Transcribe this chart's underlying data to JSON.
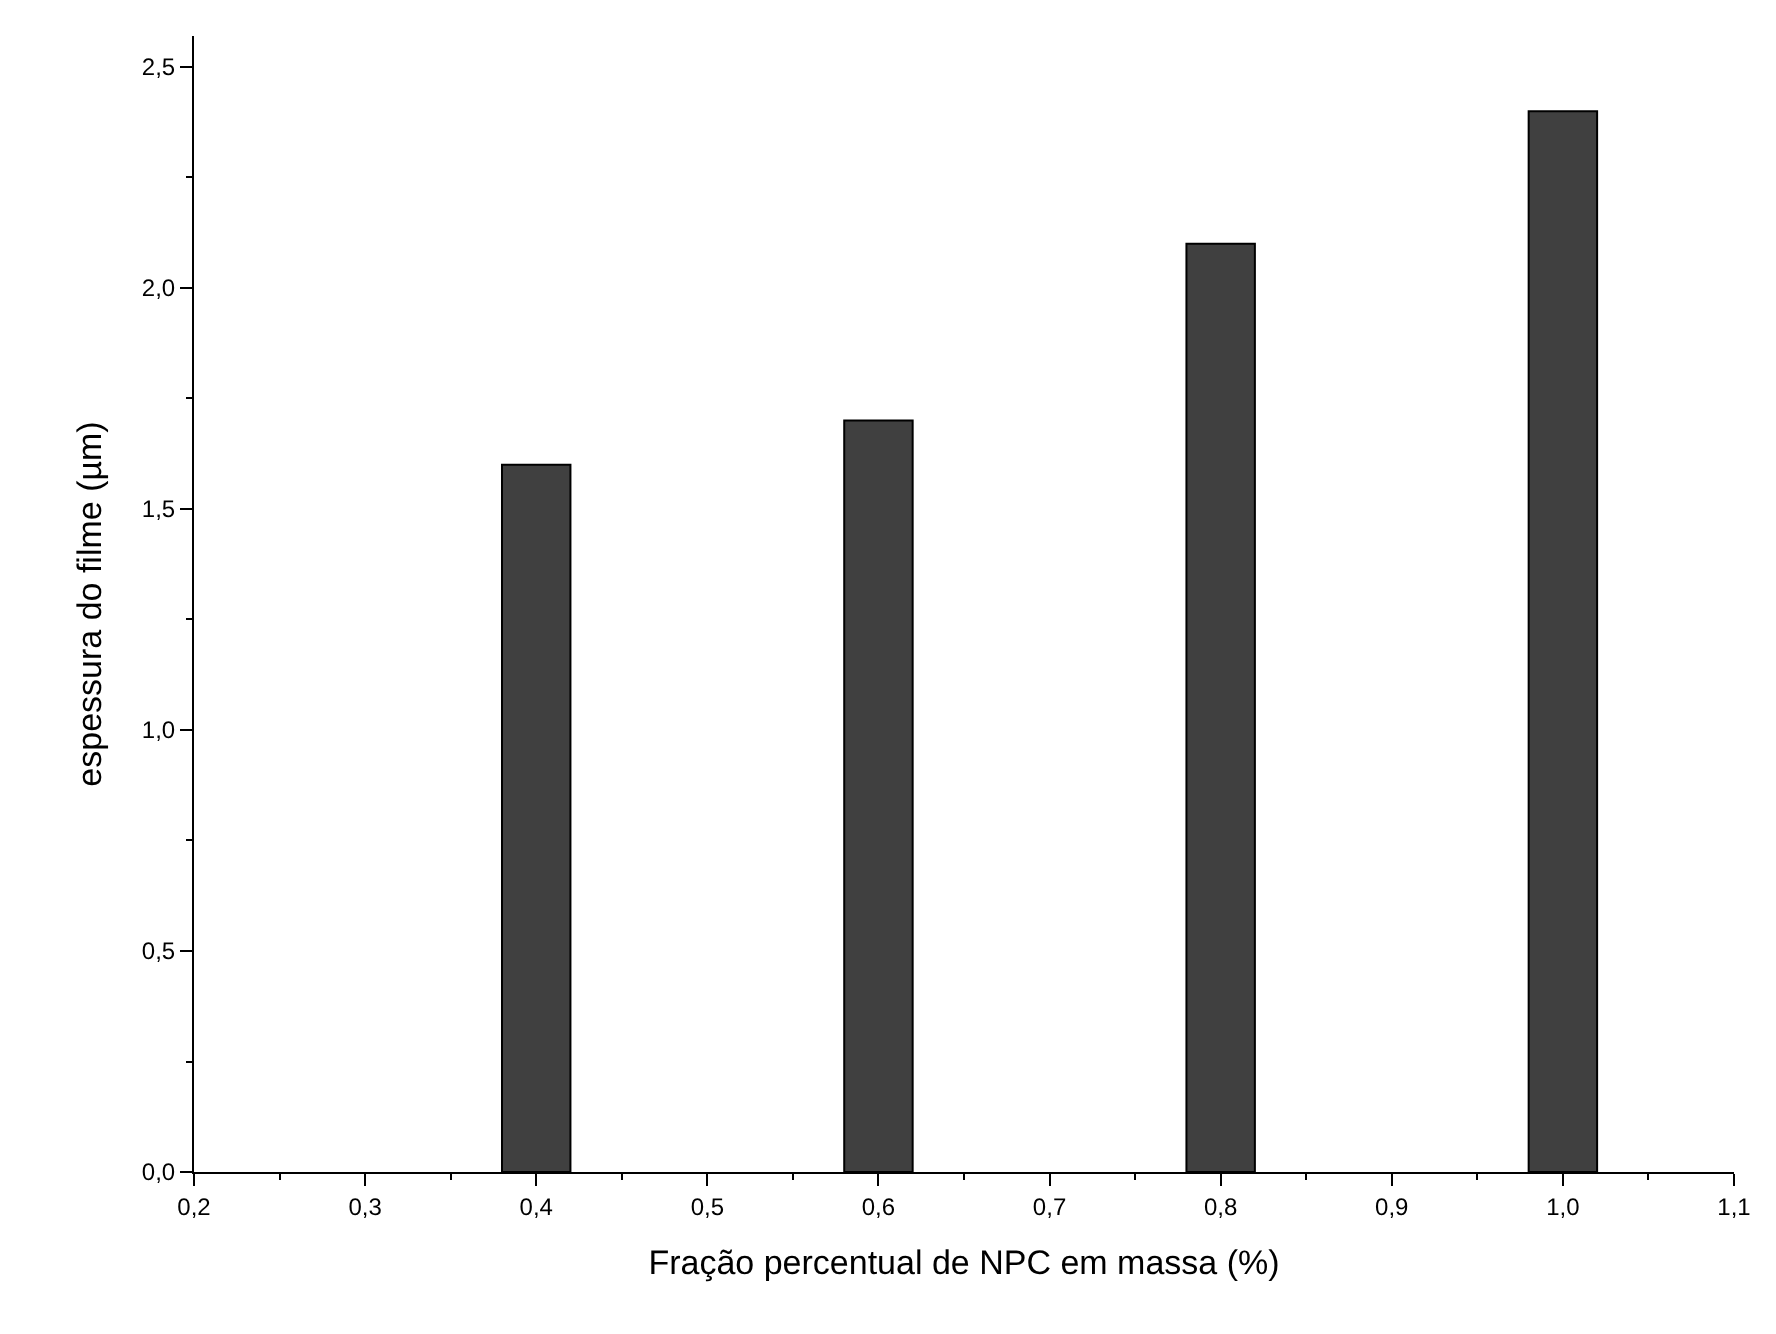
{
  "chart_data": {
    "type": "bar",
    "xlabel": "Fração percentual de NPC em massa (%)",
    "ylabel": "espessura do filme (µm)",
    "x": [
      0.4,
      0.6,
      0.8,
      1.0
    ],
    "values": [
      1.6,
      1.7,
      2.1,
      2.4
    ],
    "color": "#404040",
    "xlim": [
      0.2,
      1.1
    ],
    "ylim": [
      0,
      2.57
    ],
    "xticks": [
      {
        "value": 0.2,
        "label": "0,2"
      },
      {
        "value": 0.3,
        "label": "0,3"
      },
      {
        "value": 0.4,
        "label": "0,4"
      },
      {
        "value": 0.5,
        "label": "0,5"
      },
      {
        "value": 0.6,
        "label": "0,6"
      },
      {
        "value": 0.7,
        "label": "0,7"
      },
      {
        "value": 0.8,
        "label": "0,8"
      },
      {
        "value": 0.9,
        "label": "0,9"
      },
      {
        "value": 1.0,
        "label": "1,0"
      },
      {
        "value": 1.1,
        "label": "1,1"
      }
    ],
    "yticks": [
      {
        "value": 0,
        "label": "0,0"
      },
      {
        "value": 0.5,
        "label": "0,5"
      },
      {
        "value": 1.0,
        "label": "1,0"
      },
      {
        "value": 1.5,
        "label": "1,5"
      },
      {
        "value": 2.0,
        "label": "2,0"
      },
      {
        "value": 2.5,
        "label": "2,5"
      }
    ],
    "tick_labels": "xy"
  }
}
